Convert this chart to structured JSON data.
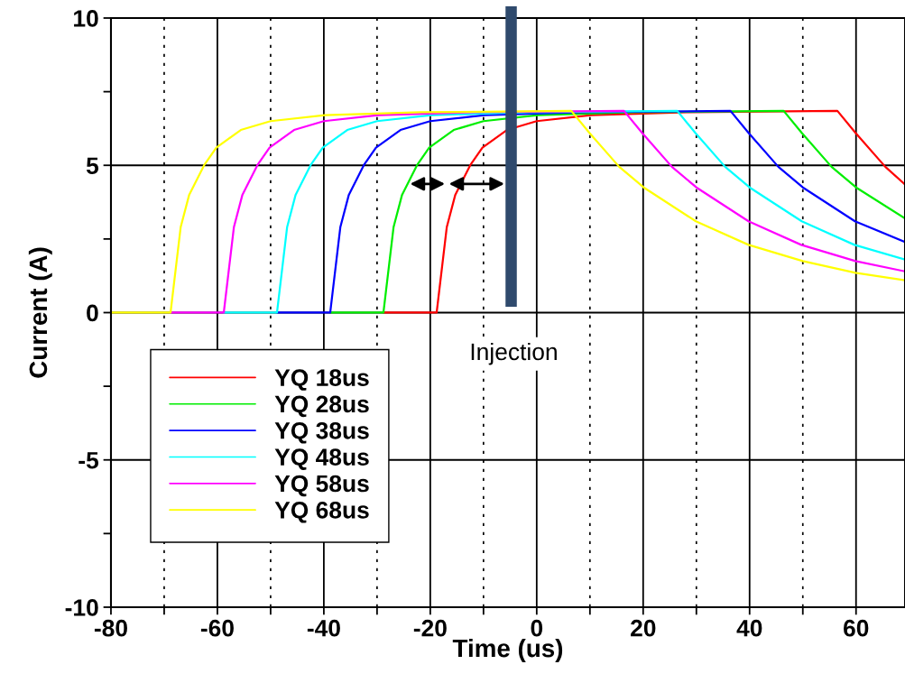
{
  "chart_data": {
    "type": "line",
    "xlabel": "Time (us)",
    "ylabel": "Current (A)",
    "xlim": [
      -80,
      69.2
    ],
    "xticks": [
      -80,
      {
        "value": -70,
        "label": null
      },
      -60,
      {
        "value": -50,
        "label": null
      },
      -40,
      {
        "value": -30,
        "label": null
      },
      -20,
      {
        "value": -10,
        "label": null
      },
      0,
      {
        "value": 10,
        "label": null
      },
      20,
      {
        "value": 30,
        "label": null
      },
      40,
      {
        "value": 50,
        "label": null
      },
      60
    ],
    "ylim": [
      -10,
      10
    ],
    "yticks": [
      -10,
      {
        "value": -7.5,
        "label": null
      },
      -5,
      {
        "value": -2.5,
        "label": null
      },
      0,
      {
        "value": 2.5,
        "label": null
      },
      5,
      {
        "value": 7.5,
        "label": null
      },
      10
    ],
    "grid": true,
    "legend": "bottom left",
    "line_style": "solid",
    "marker": "none",
    "ref_lines": [
      {
        "axis": "x",
        "value": -4.8,
        "label": "Injection",
        "color": "#2f4a6d"
      }
    ],
    "series": [
      {
        "name": "YQ 18us",
        "color": "#ff0000",
        "x": [
          -28.8,
          -18.8,
          -16.9,
          -15.3,
          -12.5,
          -10.2,
          -5.6,
          0,
          10.2,
          28.2,
          56.5,
          59.9,
          65.5,
          69.2
        ],
        "values": [
          0,
          0,
          2.9,
          4.0,
          5.0,
          5.6,
          6.2,
          6.5,
          6.7,
          6.8,
          6.85,
          6.1,
          4.95,
          4.35
        ]
      },
      {
        "name": "YQ 28us",
        "color": "#00ee00",
        "x": [
          -38.8,
          -28.8,
          -26.9,
          -25.3,
          -22.5,
          -20.2,
          -15.6,
          -10,
          0.2,
          18.2,
          46.4,
          49.8,
          55.4,
          60,
          69.2
        ],
        "values": [
          0,
          0,
          2.9,
          4.0,
          5.0,
          5.6,
          6.2,
          6.5,
          6.7,
          6.8,
          6.85,
          6.1,
          4.95,
          4.25,
          3.2
        ]
      },
      {
        "name": "YQ 38us",
        "color": "#0000ff",
        "x": [
          -48.8,
          -38.8,
          -36.9,
          -35.3,
          -32.5,
          -30.2,
          -25.6,
          -20,
          -9.8,
          8.2,
          36.4,
          39.8,
          45.4,
          50,
          59.8,
          69.2
        ],
        "values": [
          0,
          0,
          2.9,
          4.0,
          5.0,
          5.6,
          6.2,
          6.5,
          6.7,
          6.8,
          6.85,
          6.1,
          4.95,
          4.25,
          3.1,
          2.4
        ]
      },
      {
        "name": "YQ 48us",
        "color": "#00ffff",
        "x": [
          -58.8,
          -48.8,
          -46.9,
          -45.3,
          -42.5,
          -40.2,
          -35.6,
          -30,
          -19.8,
          -1.8,
          26.4,
          29.8,
          35.4,
          40,
          49.8,
          59.7,
          69.2
        ],
        "values": [
          0,
          0,
          2.9,
          4.0,
          5.0,
          5.6,
          6.2,
          6.5,
          6.7,
          6.8,
          6.85,
          6.1,
          4.95,
          4.25,
          3.1,
          2.3,
          1.8
        ]
      },
      {
        "name": "YQ 58us",
        "color": "#ff00ff",
        "x": [
          -68.8,
          -58.8,
          -56.9,
          -55.3,
          -52.5,
          -50.2,
          -45.6,
          -40,
          -29.8,
          -11.8,
          16.4,
          19.8,
          25.4,
          30,
          39.8,
          49.7,
          59.9,
          69.2
        ],
        "values": [
          0,
          0,
          2.9,
          4.0,
          5.0,
          5.6,
          6.2,
          6.5,
          6.7,
          6.8,
          6.85,
          6.1,
          4.95,
          4.25,
          3.1,
          2.3,
          1.75,
          1.4
        ]
      },
      {
        "name": "YQ 68us",
        "color": "#ffff00",
        "x": [
          -80,
          -68.8,
          -66.9,
          -65.3,
          -62.5,
          -60.2,
          -55.6,
          -50,
          -39.8,
          -21.8,
          6.5,
          9.9,
          15.5,
          20.1,
          29.9,
          39.8,
          50,
          59.9,
          69.2
        ],
        "values": [
          0,
          0,
          2.9,
          4.0,
          5.0,
          5.6,
          6.2,
          6.5,
          6.7,
          6.8,
          6.85,
          6.1,
          4.95,
          4.25,
          3.1,
          2.3,
          1.75,
          1.35,
          1.1
        ]
      }
    ]
  }
}
